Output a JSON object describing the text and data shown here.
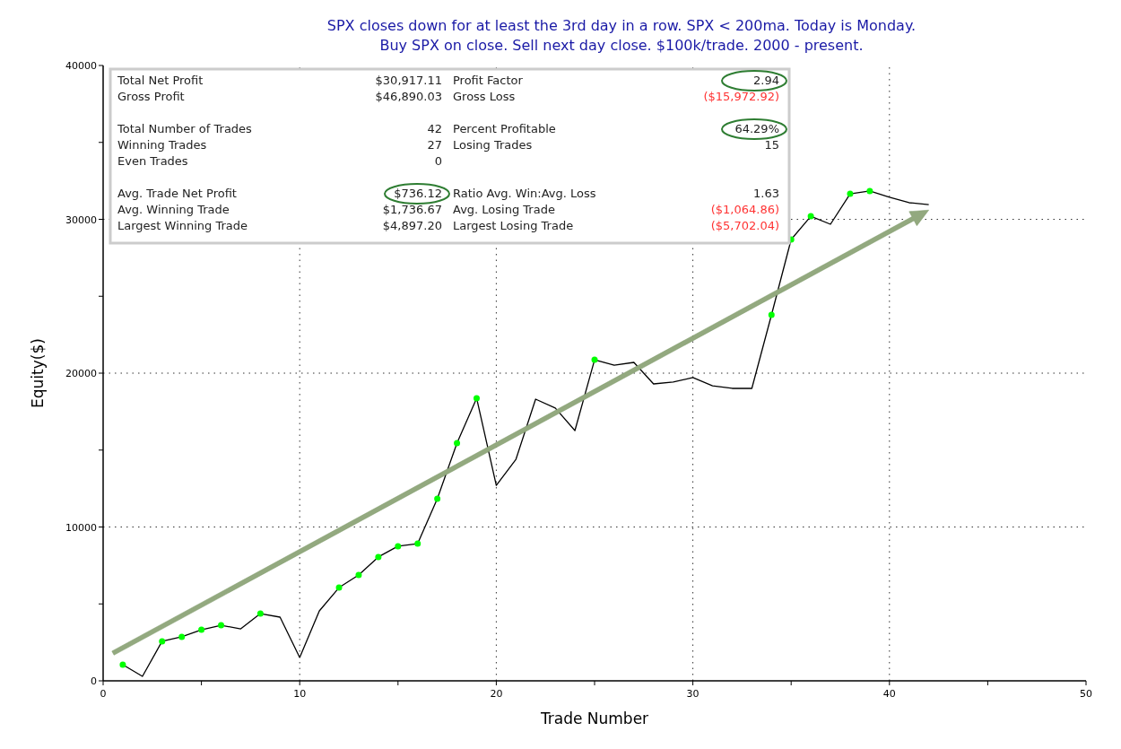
{
  "chart_data": {
    "type": "line",
    "title": "SPX closes down for at least the 3rd day in a row. SPX < 200ma. Today is Monday.",
    "subtitle": "Buy SPX on close. Sell next day close. $100k/trade. 2000 - present.",
    "xlabel": "Trade Number",
    "ylabel": "Equity($)",
    "xlim": [
      0,
      50
    ],
    "xticks": [
      0,
      {
        "value": 5,
        "label": null
      },
      10,
      {
        "value": 15,
        "label": null
      },
      20,
      {
        "value": 25,
        "label": null
      },
      30,
      {
        "value": 35,
        "label": null
      },
      40,
      {
        "value": 45,
        "label": null
      },
      50
    ],
    "ylim": [
      0,
      40000
    ],
    "yticks": [
      0,
      {
        "value": 5000,
        "label": null
      },
      10000,
      {
        "value": 15000,
        "label": null
      },
      20000,
      {
        "value": 25000,
        "label": null
      },
      30000,
      {
        "value": 35000,
        "label": null
      },
      40000
    ],
    "grid": true,
    "series": [
      {
        "color": "#000000",
        "marker": "none",
        "x": [
          1,
          2,
          3,
          4,
          5,
          6,
          7,
          8,
          9,
          10,
          11,
          12,
          13,
          14,
          15,
          16,
          17,
          18,
          19,
          20,
          21,
          22,
          23,
          24,
          25,
          26,
          27,
          28,
          29,
          30,
          31,
          32,
          33,
          34,
          35,
          36,
          37,
          38,
          39,
          40,
          41,
          42
        ],
        "values": [
          1050,
          290,
          2570,
          2860,
          3320,
          3610,
          3380,
          4370,
          4140,
          1520,
          4550,
          6060,
          6880,
          8050,
          8750,
          8920,
          11840,
          15450,
          18370,
          12710,
          14400,
          18310,
          17730,
          16270,
          20870,
          20520,
          20700,
          19300,
          19420,
          19710,
          19180,
          19010,
          19010,
          23790,
          28690,
          30200,
          29680,
          31660,
          31840,
          31430,
          31080,
          30960
        ]
      },
      {
        "type": "scatter",
        "color": "#00ff00",
        "marker": "circle",
        "x": [
          1,
          3,
          4,
          5,
          6,
          8,
          12,
          13,
          14,
          15,
          16,
          17,
          18,
          19,
          25,
          34,
          35,
          36,
          38,
          39
        ],
        "values": [
          1050,
          2570,
          2860,
          3320,
          3610,
          4370,
          6060,
          6880,
          8050,
          8750,
          8920,
          11840,
          15450,
          18370,
          20870,
          23790,
          28690,
          30200,
          31660,
          31840
        ]
      }
    ],
    "annotations": [
      "Total Net Profit",
      "$30,917.11",
      "Profit Factor",
      "2.94",
      "Gross Profit",
      "$46,890.03",
      "Gross Loss",
      "($15,972.92)",
      "Total Number of Trades",
      "42",
      "Percent Profitable",
      "64.29%",
      "Winning Trades",
      "27",
      "Losing Trades",
      "15",
      "Even Trades",
      "0",
      "Avg. Trade Net Profit",
      "$736.12",
      "Ratio Avg. Win:Avg. Loss",
      "1.63",
      "Avg. Winning Trade",
      "$1,736.67",
      "Avg. Losing Trade",
      "($1,064.86)",
      "Largest Winning Trade",
      "$4,897.20",
      "Largest Losing Trade",
      "($5,702.04)"
    ]
  }
}
